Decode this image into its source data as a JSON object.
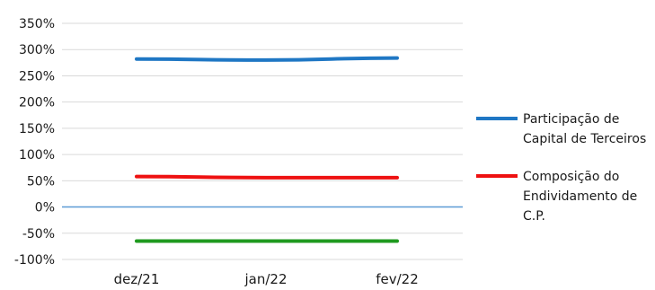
{
  "chart_data": {
    "type": "line",
    "categories": [
      "dez/21",
      "jan/22",
      "fev/22"
    ],
    "ylim": [
      -100,
      350
    ],
    "yticks": [
      -100,
      -50,
      0,
      50,
      100,
      150,
      200,
      250,
      300,
      350
    ],
    "ytick_labels": [
      "-100%",
      "-50%",
      "0%",
      "50%",
      "100%",
      "150%",
      "200%",
      "250%",
      "300%",
      "350%"
    ],
    "grid": true,
    "legend_position": "right",
    "series": [
      {
        "name": "Participação de Capital de Terceiros",
        "legend_lines": [
          "Participação de",
          "Capital de Terceiros"
        ],
        "values": [
          282,
          280,
          284
        ],
        "color": "#1f77c4"
      },
      {
        "name": "Composição do Endividamento de C.P.",
        "legend_lines": [
          "Composição do",
          "Endividamento de",
          "C.P."
        ],
        "values": [
          58,
          56,
          56
        ],
        "color": "#ee1111"
      },
      {
        "values": [
          -65,
          -65,
          -65
        ],
        "color": "#1f9a1f"
      }
    ],
    "zero_line_color": "#5b9bd5",
    "grid_color": "#d9d9d9"
  }
}
